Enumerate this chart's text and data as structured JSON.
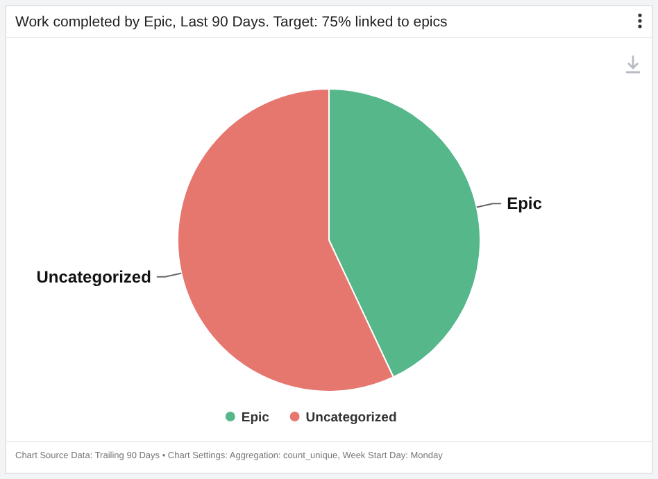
{
  "chart_data": {
    "type": "pie",
    "title": "Work completed by Epic, Last 90 Days. Target: 75% linked to epics",
    "categories": [
      "Epic",
      "Uncategorized"
    ],
    "values": [
      43,
      57
    ],
    "colors": [
      "#55b78a",
      "#e5776f"
    ],
    "legend": "bottom",
    "annotations": [
      "Chart Source Data: Trailing 90 Days • Chart Settings: Aggregation: count_unique, Week Start Day: Monday"
    ]
  }
}
